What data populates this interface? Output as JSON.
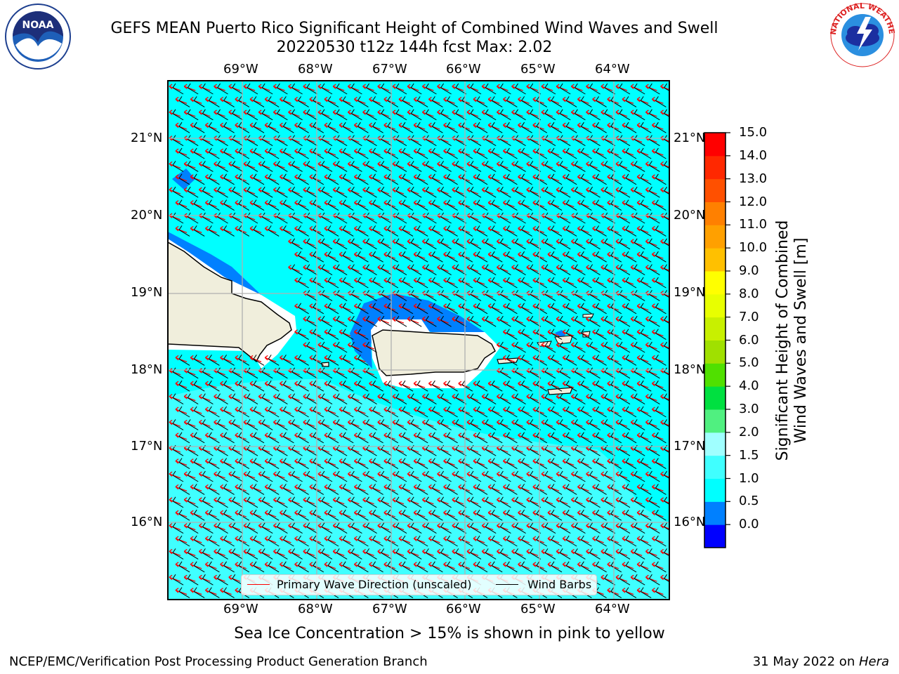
{
  "header": {
    "title_line1": "GEFS MEAN Puerto Rico Significant Height of Combined Wind Waves and Swell",
    "title_line2": "20220530 t12z 144h fcst   Max: 2.02"
  },
  "logos": {
    "left": "noaa-logo",
    "right": "nws-logo"
  },
  "map": {
    "lon_ticks": [
      "69°W",
      "68°W",
      "67°W",
      "66°W",
      "65°W",
      "64°W"
    ],
    "lat_ticks": [
      "21°N",
      "20°N",
      "19°N",
      "18°N",
      "17°N",
      "16°N"
    ],
    "legend": {
      "wave_label": "Primary Wave Direction (unscaled)",
      "barb_label": "Wind Barbs",
      "wave_color": "#ff0000",
      "barb_color": "#000000"
    }
  },
  "colorbar": {
    "label_line1": "Significant Height of Combined",
    "label_line2": "Wind Waves and Swell [m]",
    "ticks": [
      "15.0",
      "14.0",
      "13.0",
      "12.0",
      "11.0",
      "10.0",
      "9.0",
      "8.0",
      "7.0",
      "6.0",
      "5.0",
      "4.0",
      "3.0",
      "2.0",
      "1.5",
      "1.0",
      "0.5",
      "0.0"
    ],
    "colors": [
      "#0000ff",
      "#0080ff",
      "#00ffff",
      "#40ffff",
      "#a0ffff",
      "#50f080",
      "#00e040",
      "#50e000",
      "#a0e000",
      "#c8f000",
      "#e8ff00",
      "#ffff00",
      "#ffc000",
      "#ffa000",
      "#ff8000",
      "#ff5000",
      "#ff2800",
      "#ff0000"
    ]
  },
  "subtitle": "Sea Ice Concentration > 15% is shown in pink to yellow",
  "footer": {
    "left": "NCEP/EMC/Verification Post Processing Product Generation Branch",
    "right_prefix": "31 May 2022 on ",
    "right_host": "Hera"
  }
}
